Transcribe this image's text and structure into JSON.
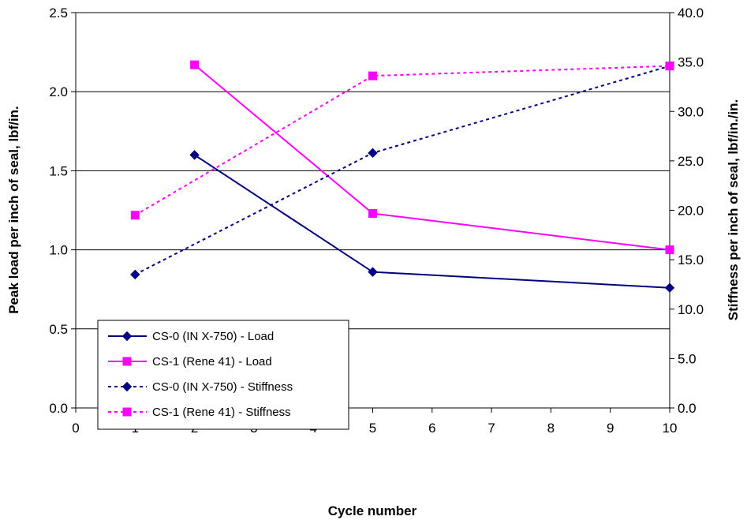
{
  "chart_data": {
    "type": "line",
    "title": "",
    "xlabel": "Cycle number",
    "ylabel": "Peak load per inch of seal, lbf/in.",
    "y2label": "Stiffness per inch of seal, lbf/in./in.",
    "xlim": [
      0,
      10
    ],
    "ylim": [
      0,
      2.5
    ],
    "y2lim": [
      0,
      40
    ],
    "x_ticks": [
      "0",
      "1",
      "2",
      "3",
      "4",
      "5",
      "6",
      "7",
      "8",
      "9",
      "10"
    ],
    "y_ticks": [
      "0.0",
      "0.5",
      "1.0",
      "1.5",
      "2.0",
      "2.5"
    ],
    "y2_ticks": [
      "0.0",
      "5.0",
      "10.0",
      "15.0",
      "20.0",
      "25.0",
      "30.0",
      "35.0",
      "40.0"
    ],
    "grid": "horizontal major gridlines",
    "legend_position": "lower-left",
    "series": [
      {
        "name": "CS-0 (IN X-750) - Load",
        "axis": "left",
        "x": [
          2,
          5,
          10
        ],
        "y": [
          1.6,
          0.86,
          0.76
        ],
        "color": "#000080",
        "marker": "diamond",
        "dash": "solid"
      },
      {
        "name": "CS-1 (Rene 41) - Load",
        "axis": "left",
        "x": [
          2,
          5,
          10
        ],
        "y": [
          2.17,
          1.23,
          1.0
        ],
        "color": "#ff00ff",
        "marker": "square",
        "dash": "solid"
      },
      {
        "name": "CS-0 (IN X-750) - Stiffness",
        "axis": "right",
        "x": [
          1,
          5,
          10
        ],
        "y": [
          13.5,
          25.8,
          34.6
        ],
        "color": "#000080",
        "marker": "diamond",
        "dash": "dotted"
      },
      {
        "name": "CS-1 (Rene 41) - Stiffness",
        "axis": "right",
        "x": [
          1,
          5,
          10
        ],
        "y": [
          19.5,
          33.6,
          34.6
        ],
        "color": "#ff00ff",
        "marker": "square",
        "dash": "dotted"
      }
    ]
  }
}
